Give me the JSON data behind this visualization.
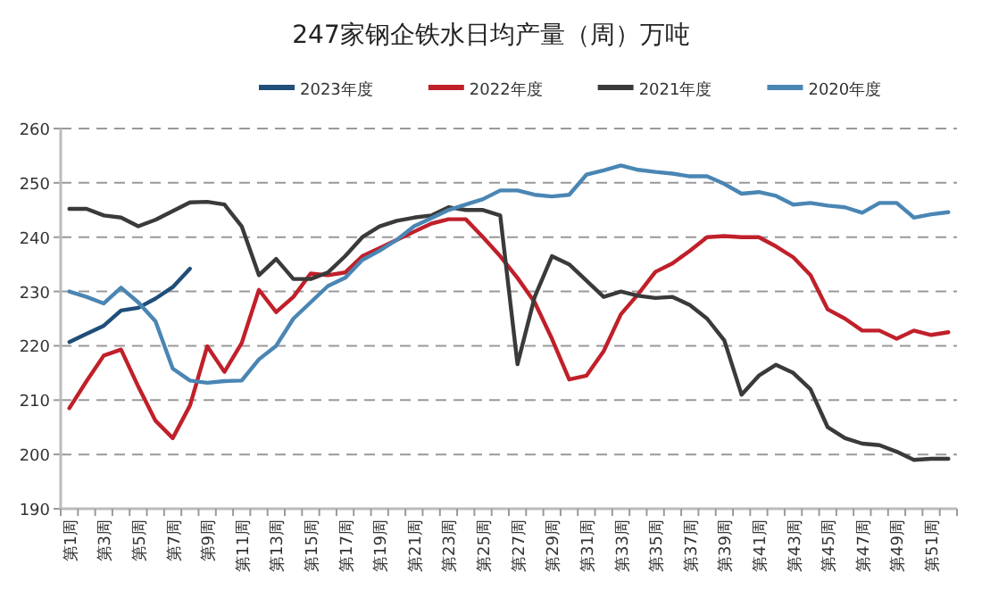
{
  "chart_data": {
    "type": "line",
    "title": "247家钢企铁水日均产量（周）万吨",
    "categories": [
      "第1周",
      null,
      "第3周",
      null,
      "第5周",
      null,
      "第7周",
      null,
      "第9周",
      null,
      "第11周",
      null,
      "第13周",
      null,
      "第15周",
      null,
      "第17周",
      null,
      "第19周",
      null,
      "第21周",
      null,
      "第23周",
      null,
      "第25周",
      null,
      "第27周",
      null,
      "第29周",
      null,
      "第31周",
      null,
      "第33周",
      null,
      "第35周",
      null,
      "第37周",
      null,
      "第39周",
      null,
      "第41周",
      null,
      "第43周",
      null,
      "第45周",
      null,
      "第47周",
      null,
      "第49周",
      null,
      "第51周",
      null
    ],
    "series": [
      {
        "name": "2023年度",
        "color": "#1f4e79",
        "values": [
          220.7,
          222.2,
          223.7,
          226.5,
          227,
          228.7,
          230.8,
          234.2,
          null,
          null,
          null,
          null,
          null,
          null,
          null,
          null,
          null,
          null,
          null,
          null,
          null,
          null,
          null,
          null,
          null,
          null,
          null,
          null,
          null,
          null,
          null,
          null,
          null,
          null,
          null,
          null,
          null,
          null,
          null,
          null,
          null,
          null,
          null,
          null,
          null,
          null,
          null,
          null,
          null,
          null,
          null,
          null
        ]
      },
      {
        "name": "2022年度",
        "color": "#c0202a",
        "values": [
          208.5,
          213.5,
          218.2,
          219.3,
          212.5,
          206.2,
          203,
          209,
          219.9,
          215.2,
          220.5,
          230.3,
          226.2,
          229,
          233.3,
          233,
          233.5,
          236.5,
          238,
          239.5,
          241,
          242.5,
          243.3,
          243.3,
          240,
          236.5,
          232.5,
          228,
          221.3,
          213.8,
          214.5,
          219,
          225.8,
          229.5,
          233.6,
          235.2,
          237.5,
          240,
          240.2,
          240,
          240,
          238.3,
          236.3,
          233,
          226.7,
          225,
          222.8,
          222.8,
          221.3,
          222.8,
          222,
          222.5
        ]
      },
      {
        "name": "2021年度",
        "color": "#3a3a3a",
        "values": [
          245.2,
          245.2,
          244,
          243.6,
          242,
          243.2,
          244.8,
          246.4,
          246.5,
          246,
          242,
          233,
          236,
          232.3,
          232.3,
          233.5,
          236.5,
          240,
          242,
          243,
          243.6,
          244,
          245.5,
          245,
          245,
          244,
          216.6,
          229,
          236.5,
          235,
          232,
          229,
          230,
          229.2,
          228.8,
          229,
          227.5,
          225,
          221,
          211,
          214.5,
          216.5,
          215,
          212,
          205,
          203,
          202,
          201.7,
          200.5,
          199,
          199.2,
          199.2
        ]
      },
      {
        "name": "2020年度",
        "color": "#4a86b4",
        "values": [
          230,
          229,
          227.8,
          230.7,
          228,
          224.5,
          215.8,
          213.6,
          213.2,
          213.5,
          213.6,
          217.5,
          220,
          225,
          228,
          231,
          232.5,
          235.8,
          237.5,
          239.5,
          242,
          243.5,
          245,
          246,
          247,
          248.6,
          248.6,
          247.8,
          247.5,
          247.8,
          251.5,
          252.3,
          253.2,
          252.4,
          252,
          251.7,
          251.2,
          251.2,
          249.8,
          248,
          248.3,
          247.6,
          246,
          246.3,
          245.8,
          245.5,
          244.5,
          246.3,
          246.3,
          243.6,
          244.2,
          244.6
        ]
      }
    ],
    "ylim": [
      190,
      260
    ],
    "yticks": [
      190,
      200,
      210,
      220,
      230,
      240,
      250,
      260
    ],
    "grid": "y",
    "legend": "top",
    "marker": "none",
    "line_style": "solid"
  }
}
